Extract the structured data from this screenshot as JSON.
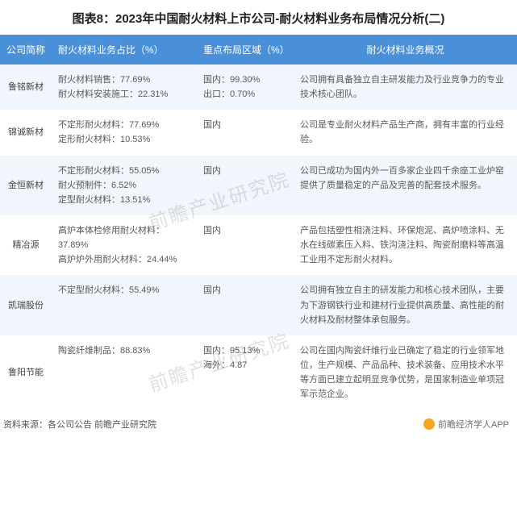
{
  "title": "图表8：2023年中国耐火材料上市公司-耐火材料业务布局情况分析(二)",
  "columns": [
    "公司简称",
    "耐火材料业务占比（%）",
    "重点布局区域（%）",
    "耐火材料业务概况"
  ],
  "rows": [
    {
      "name": "鲁铭新材",
      "ratio": "耐火材料销售：77.69%\n耐火材料安装施工：22.31%",
      "region": "国内：99.30%\n出口：0.70%",
      "overview": "公司拥有具备独立自主研发能力及行业竞争力的专业技术核心团队。"
    },
    {
      "name": "锦诚新材",
      "ratio": "不定形耐火材料：77.69%\n定形耐火材料：10.53%",
      "region": "国内",
      "overview": "公司是专业耐火材料产品生产商，拥有丰富的行业经验。"
    },
    {
      "name": "金恒新材",
      "ratio": "不定形耐火材料：55.05%\n耐火预制件：6.52%\n定型耐火材料：13.51%",
      "region": "国内",
      "overview": "公司已成功为国内外一百多家企业四千余座工业炉窑提供了质量稳定的产品及完善的配套技术服务。"
    },
    {
      "name": "精冶源",
      "ratio": "高炉本体检修用耐火材料：37.89%\n高炉炉外用耐火材料：24.44%",
      "region": "国内",
      "overview": "产品包括塑性相浇注料、环保炮泥、高炉喷涂料、无水在线碳素压入料、铁沟浇注料、陶瓷耐磨料等高温工业用不定形耐火材料。"
    },
    {
      "name": "凯瑞股份",
      "ratio": "不定型耐火材料：55.49%",
      "region": "国内",
      "overview": "公司拥有独立自主的研发能力和核心技术团队，主要为下游钢铁行业和建材行业提供高质量、高性能的耐火材料及耐材整体承包服务。"
    },
    {
      "name": "鲁阳节能",
      "ratio": "陶瓷纤维制品：88.83%",
      "region": "国内：95.13%\n海外：4.87",
      "overview": "公司在国内陶瓷纤维行业已确定了稳定的行业领军地位，生产规模、产品品种、技术装备、应用技术水平等方面已建立起明显竞争优势，是国家制造业单项冠军示范企业。"
    }
  ],
  "source": "资料来源：各公司公告 前瞻产业研究院",
  "watermark": "前瞻产业研究院",
  "footer_brand": "前瞻经济学人APP",
  "colors": {
    "header_bg": "#4a90d9",
    "header_text": "#ffffff",
    "row_alt_bg": "#f1f6fc",
    "text": "#595959"
  }
}
